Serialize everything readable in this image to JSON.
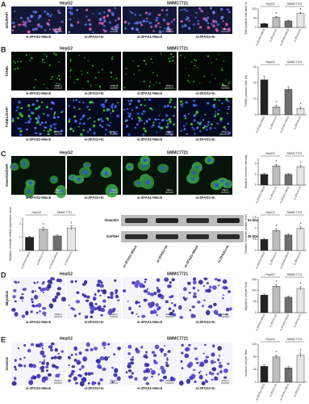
{
  "panels": [
    {
      "label": "A",
      "headers": [
        "HepG2",
        "SMMC7721"
      ],
      "row_labels": [
        "EdU/DAPI"
      ],
      "captions": [
        "si-ZFAS1+Mock",
        "si-ZFAS1+In",
        "si-ZFAS1+Mock",
        "si-ZFAS1+In"
      ],
      "scale_bar": "50μm",
      "charts": [
        {
          "type": "bar",
          "ylabel": "EdU positive cell rates %",
          "groups": [
            "HepG2",
            "SMMC7721"
          ],
          "categories": [
            "si-ZFAS1+Mock",
            "si-ZFAS1+In",
            "si-ZFAS1+Mock",
            "si-ZFAS1+In"
          ],
          "values": [
            20,
            55,
            35,
            75
          ],
          "errors": [
            3,
            5,
            4,
            6
          ],
          "colors": [
            "#222222",
            "#bdbdbd",
            "#6e6e6e",
            "#e6e6e6"
          ],
          "ylim": [
            0,
            100
          ],
          "yticks": [
            0,
            50,
            100
          ],
          "annotations": [
            {
              "index": 1,
              "text": "*"
            },
            {
              "index": 3,
              "text": "*"
            }
          ]
        }
      ]
    },
    {
      "label": "B",
      "headers": [
        "HepG2",
        "SMMC7721"
      ],
      "row_labels": [
        "TUNEL",
        "TUNEL/DAPI"
      ],
      "captions": [
        "si-ZFAS1+Mock",
        "si-ZFAS1+In",
        "si-ZFAS1+Mock",
        "si-ZFAS1+In"
      ],
      "scale_bar": "100μm",
      "charts": [
        {
          "type": "bar",
          "ylabel": "TUNEL positive cells (%)",
          "groups": [
            "HepG2",
            "SMMC7721"
          ],
          "categories": [
            "si-ZFAS1+Mock",
            "si-ZFAS1+In",
            "si-ZFAS1+Mock",
            "si-ZFAS1+In"
          ],
          "values": [
            22,
            5,
            16,
            4
          ],
          "errors": [
            2,
            1,
            1.5,
            1
          ],
          "colors": [
            "#222222",
            "#bdbdbd",
            "#6e6e6e",
            "#e6e6e6"
          ],
          "ylim": [
            0,
            30
          ],
          "yticks": [
            0,
            10,
            20,
            30
          ],
          "annotations": [
            {
              "index": 1,
              "text": "*"
            },
            {
              "index": 3,
              "text": "*"
            }
          ]
        }
      ]
    },
    {
      "label": "C",
      "headers": [
        "HepG2",
        "SMMC7721"
      ],
      "row_labels": [
        "Vimentin/DAPI"
      ],
      "captions": [
        "si-ZFAS1+Mock",
        "si-ZFAS1+In",
        "si-ZFAS1+Mock",
        "si-ZFAS1+In"
      ],
      "scale_bar": "25μm",
      "charts": [
        {
          "type": "bar",
          "ylabel": "Relative vimentin intensity",
          "groups": [
            "HepG2",
            "SMMC7721"
          ],
          "categories": [
            "si-ZFAS1+Mock",
            "si-ZFAS1+In",
            "si-ZFAS1+Mock",
            "si-ZFAS1+In"
          ],
          "values": [
            1.0,
            1.8,
            1.0,
            1.7
          ],
          "errors": [
            0.1,
            0.15,
            0.1,
            0.15
          ],
          "colors": [
            "#222222",
            "#bdbdbd",
            "#6e6e6e",
            "#e6e6e6"
          ],
          "ylim": [
            0,
            2.5
          ],
          "yticks": [
            0,
            1,
            2
          ],
          "annotations": [
            {
              "index": 1,
              "text": "*"
            },
            {
              "index": 3,
              "text": "*"
            }
          ]
        },
        {
          "type": "bar",
          "ylabel": "Relative Vimentin mRNA expression level",
          "groups": [
            "HepG2",
            "SMMC7721"
          ],
          "categories": [
            "si-ZFAS1+Mock",
            "si-ZFAS1+In",
            "si-ZFAS1+Mock",
            "si-ZFAS1+In"
          ],
          "values": [
            1.0,
            1.6,
            1.1,
            1.7
          ],
          "errors": [
            0.08,
            0.15,
            0.08,
            0.15
          ],
          "colors": [
            "#222222",
            "#bdbdbd",
            "#6e6e6e",
            "#e6e6e6"
          ],
          "ylim": [
            0,
            2.5
          ],
          "yticks": [
            0,
            1,
            2
          ],
          "annotations": [
            {
              "index": 1,
              "text": "*"
            },
            {
              "index": 3,
              "text": "*"
            }
          ]
        },
        {
          "type": "bar",
          "ylabel": "Relative Vimentin protein level",
          "groups": [
            "HepG2",
            "SMMC7721"
          ],
          "categories": [
            "si-ZFAS1+Mock",
            "si-ZFAS1+In",
            "si-ZFAS1+Mock",
            "si-ZFAS1+In"
          ],
          "values": [
            0.5,
            0.9,
            0.7,
            1.0
          ],
          "errors": [
            0.05,
            0.08,
            0.06,
            0.08
          ],
          "colors": [
            "#222222",
            "#bdbdbd",
            "#6e6e6e",
            "#e6e6e6"
          ],
          "ylim": [
            0,
            1.5
          ],
          "yticks": [
            0,
            0.5,
            1,
            1.5
          ],
          "annotations": [
            {
              "index": 1,
              "text": "*"
            },
            {
              "index": 3,
              "text": "*"
            }
          ]
        }
      ],
      "blot": {
        "bands": [
          "Vimentin",
          "GAPDH"
        ],
        "sizes": [
          "54 kDa",
          "36 kDa"
        ],
        "lanes": [
          "si-ZFAS1+Mock",
          "si-ZFAS1+In",
          "si-ZFAS1+Mock",
          "si-ZFAS1+In"
        ]
      }
    },
    {
      "label": "D",
      "headers": [
        "HepG2",
        "SMMC7721"
      ],
      "row_labels": [
        "Migration"
      ],
      "captions": [
        "si-ZFAS1+Mock",
        "si-ZFAS1+In",
        "si-ZFAS1+Mock",
        "si-ZFAS1+In"
      ],
      "scale_bar": "200μm",
      "charts": [
        {
          "type": "bar",
          "ylabel": "Migration cell per field",
          "groups": [
            "HepG2",
            "SMMC7721"
          ],
          "categories": [
            "si-ZFAS1+Mock",
            "si-ZFAS1+In",
            "si-ZFAS1+Mock",
            "si-ZFAS1+In"
          ],
          "values": [
            80,
            120,
            70,
            110
          ],
          "errors": [
            5,
            8,
            6,
            8
          ],
          "colors": [
            "#222222",
            "#bdbdbd",
            "#6e6e6e",
            "#e6e6e6"
          ],
          "ylim": [
            0,
            150
          ],
          "yticks": [
            0,
            50,
            100,
            150
          ],
          "annotations": [
            {
              "index": 1,
              "text": "*"
            },
            {
              "index": 3,
              "text": "*"
            }
          ]
        }
      ]
    },
    {
      "label": "E",
      "headers": [
        "HepG2",
        "SMMC7721"
      ],
      "row_labels": [
        "Invasion"
      ],
      "captions": [
        "si-ZFAS1+Mock",
        "si-ZFAS1+In",
        "si-ZFAS1+Mock",
        "si-ZFAS1+In"
      ],
      "scale_bar": "200μm",
      "charts": [
        {
          "type": "bar",
          "ylabel": "Invasive cell per field",
          "groups": [
            "HepG2",
            "SMMC7721"
          ],
          "categories": [
            "si-ZFAS1+Mock",
            "si-ZFAS1+In",
            "si-ZFAS1+Mock",
            "si-ZFAS1+In"
          ],
          "values": [
            50,
            80,
            45,
            85
          ],
          "errors": [
            5,
            6,
            5,
            7
          ],
          "colors": [
            "#222222",
            "#bdbdbd",
            "#6e6e6e",
            "#e6e6e6"
          ],
          "ylim": [
            0,
            120
          ],
          "yticks": [
            0,
            40,
            80,
            120
          ],
          "annotations": [
            {
              "index": 1,
              "text": "*"
            },
            {
              "index": 3,
              "text": "*"
            }
          ]
        }
      ]
    }
  ]
}
